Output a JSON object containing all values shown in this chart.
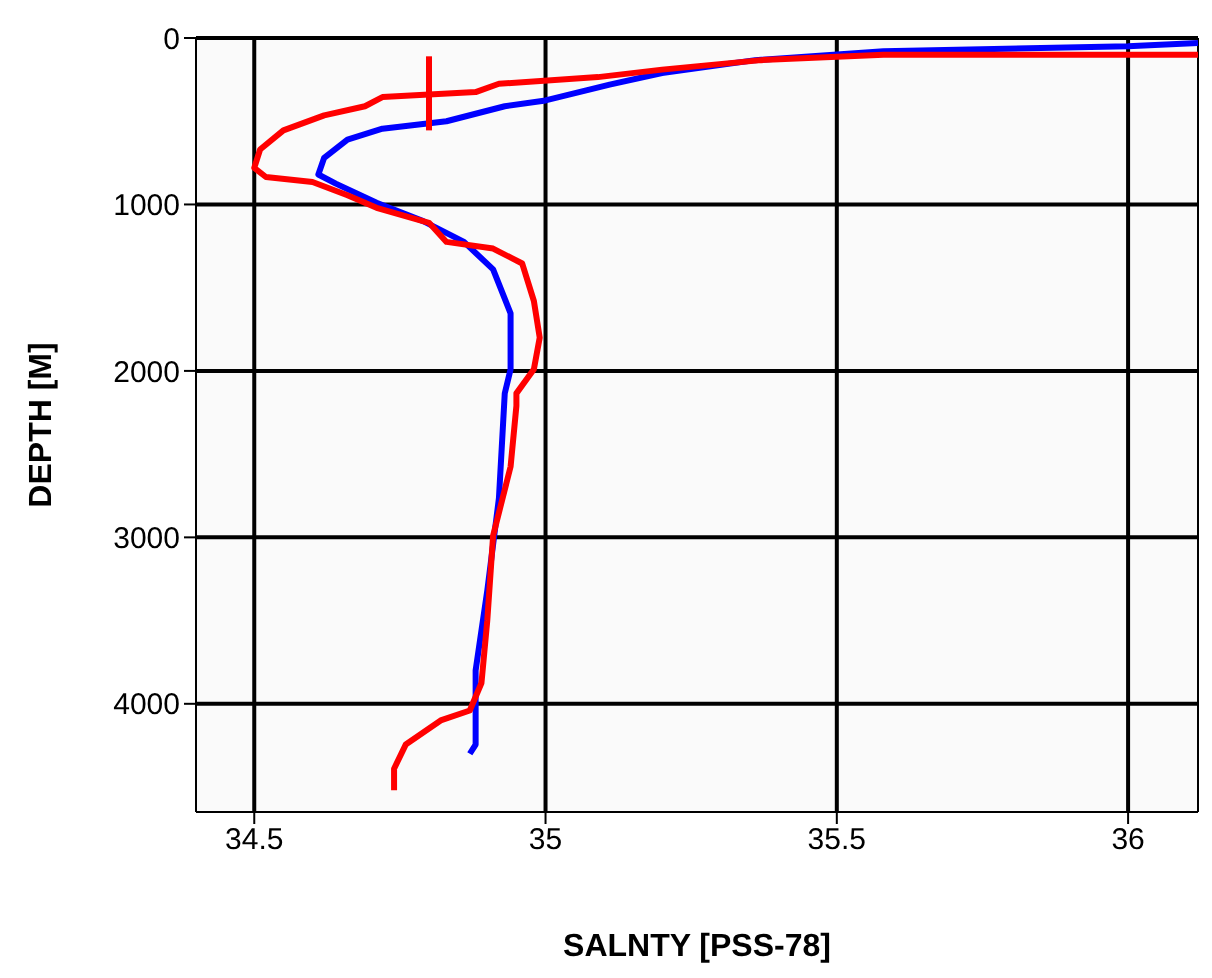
{
  "chart_data": {
    "type": "line",
    "xlabel": "SALNTY [PSS-78]",
    "ylabel": "DEPTH [M]",
    "xlim": [
      34.4,
      36.12
    ],
    "xticks": [
      34.5,
      35,
      35.5,
      36
    ],
    "ylim": [
      4650,
      0
    ],
    "yticks": [
      0,
      1000,
      2000,
      3000,
      4000
    ],
    "grid": true,
    "marker": "none",
    "line_style": "solid",
    "series": [
      {
        "color": "#0000ff",
        "x": [
          36.12,
          36.0,
          35.58,
          35.36,
          35.2,
          35.11,
          35.0,
          34.93,
          34.83,
          34.72,
          34.66,
          34.62,
          34.61,
          34.64,
          34.71,
          34.79,
          34.86,
          34.91,
          34.94,
          34.94,
          34.93,
          34.92,
          34.9,
          34.88,
          34.88,
          34.87
        ],
        "values": [
          30,
          50,
          80,
          133,
          210,
          280,
          375,
          410,
          500,
          545,
          610,
          720,
          820,
          875,
          990,
          1100,
          1225,
          1390,
          1655,
          1990,
          2135,
          2765,
          3320,
          3800,
          4245,
          4300
        ]
      },
      {
        "color": "#ff0000",
        "x": [
          36.12,
          35.58,
          35.37,
          35.2,
          35.09,
          34.92,
          34.88,
          34.72,
          34.69,
          34.62,
          34.55,
          34.51,
          34.5,
          34.52,
          34.6,
          34.66,
          34.71,
          34.8,
          34.83,
          34.91,
          34.96,
          34.98,
          34.99,
          34.98,
          34.95,
          34.95,
          34.94,
          34.91,
          34.9,
          34.89,
          34.87,
          34.82,
          34.76,
          34.74,
          34.74
        ],
        "values": [
          100,
          100,
          133,
          190,
          235,
          275,
          325,
          355,
          410,
          465,
          555,
          670,
          780,
          835,
          865,
          945,
          1020,
          1110,
          1225,
          1265,
          1355,
          1580,
          1800,
          1990,
          2135,
          2210,
          2575,
          2990,
          3500,
          3875,
          4040,
          4100,
          4245,
          4390,
          4520
        ]
      },
      {
        "color": "#ff0000",
        "x": [
          34.8,
          34.8
        ],
        "values": [
          110,
          555
        ]
      }
    ]
  }
}
